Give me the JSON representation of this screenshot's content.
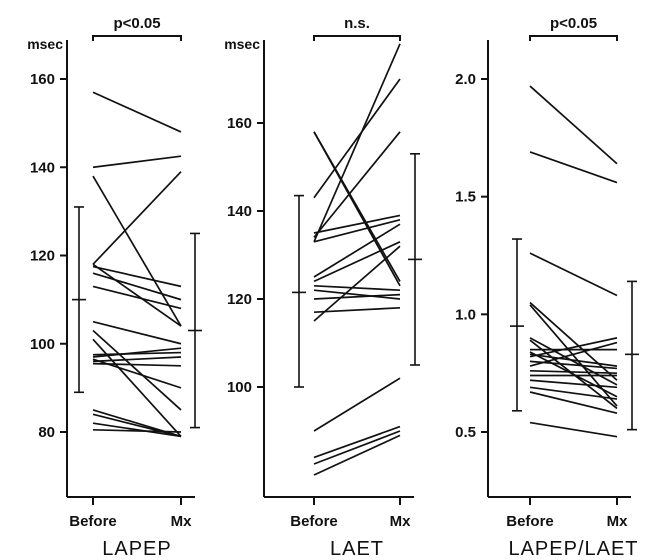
{
  "chart_data": [
    {
      "type": "line",
      "title": "LAPEP",
      "ylabel": "msec",
      "significance": "p<0.05",
      "categories": [
        "Before",
        "Mx"
      ],
      "ylim": [
        70,
        166
      ],
      "yticks": [
        80,
        100,
        120,
        140,
        160
      ],
      "pairs": [
        [
          157,
          148
        ],
        [
          140,
          142.5
        ],
        [
          138,
          104
        ],
        [
          118,
          104
        ],
        [
          118,
          139
        ],
        [
          117.5,
          113
        ],
        [
          116,
          110
        ],
        [
          113,
          108
        ],
        [
          105,
          100
        ],
        [
          103,
          85
        ],
        [
          101,
          79
        ],
        [
          97.5,
          98
        ],
        [
          97,
          99
        ],
        [
          96.5,
          90
        ],
        [
          96,
          97
        ],
        [
          95.5,
          95
        ],
        [
          85,
          79
        ],
        [
          84,
          79
        ],
        [
          82,
          79
        ],
        [
          80.5,
          80
        ]
      ],
      "summary": {
        "before": {
          "mean": 110,
          "low": 89,
          "high": 131
        },
        "after": {
          "mean": 103,
          "low": 81,
          "high": 125
        }
      }
    },
    {
      "type": "line",
      "title": "LAET",
      "ylabel": "msec",
      "significance": "n.s.",
      "categories": [
        "Before",
        "Mx"
      ],
      "ylim": [
        77,
        179
      ],
      "yticks": [
        100,
        120,
        140,
        160
      ],
      "pairs": [
        [
          158,
          124
        ],
        [
          158,
          123
        ],
        [
          143,
          170
        ],
        [
          133,
          178
        ],
        [
          134,
          158
        ],
        [
          135,
          139
        ],
        [
          133,
          138
        ],
        [
          125,
          137
        ],
        [
          124,
          133
        ],
        [
          123,
          122
        ],
        [
          122,
          120
        ],
        [
          120,
          121
        ],
        [
          117,
          118
        ],
        [
          115,
          132
        ],
        [
          90,
          102
        ],
        [
          84,
          91
        ],
        [
          82.5,
          90
        ],
        [
          80,
          89
        ]
      ],
      "summary": {
        "before": {
          "mean": 121.5,
          "low": 100,
          "high": 143.5
        },
        "after": {
          "mean": 129,
          "low": 105,
          "high": 153
        }
      }
    },
    {
      "type": "line",
      "title": "LAPEP/LAET",
      "ylabel": "",
      "significance": "p<0.05",
      "categories": [
        "Before",
        "Mx"
      ],
      "ylim": [
        0.33,
        2.17
      ],
      "yticks": [
        0.5,
        1.0,
        1.5,
        2.0
      ],
      "ytick_labels": [
        "0.5",
        "1.0",
        "1.5",
        "2.0"
      ],
      "pairs": [
        [
          1.97,
          1.64
        ],
        [
          1.69,
          1.56
        ],
        [
          1.26,
          1.08
        ],
        [
          1.05,
          0.72
        ],
        [
          1.04,
          0.61
        ],
        [
          0.9,
          0.7
        ],
        [
          0.89,
          0.6
        ],
        [
          0.85,
          0.85
        ],
        [
          0.84,
          0.65
        ],
        [
          0.83,
          0.78
        ],
        [
          0.82,
          0.9
        ],
        [
          0.8,
          0.77
        ],
        [
          0.78,
          0.88
        ],
        [
          0.76,
          0.75
        ],
        [
          0.74,
          0.74
        ],
        [
          0.72,
          0.69
        ],
        [
          0.69,
          0.64
        ],
        [
          0.67,
          0.58
        ],
        [
          0.54,
          0.48
        ]
      ],
      "summary": {
        "before": {
          "mean": 0.95,
          "low": 0.59,
          "high": 1.32
        },
        "after": {
          "mean": 0.83,
          "low": 0.51,
          "high": 1.14
        }
      }
    }
  ]
}
